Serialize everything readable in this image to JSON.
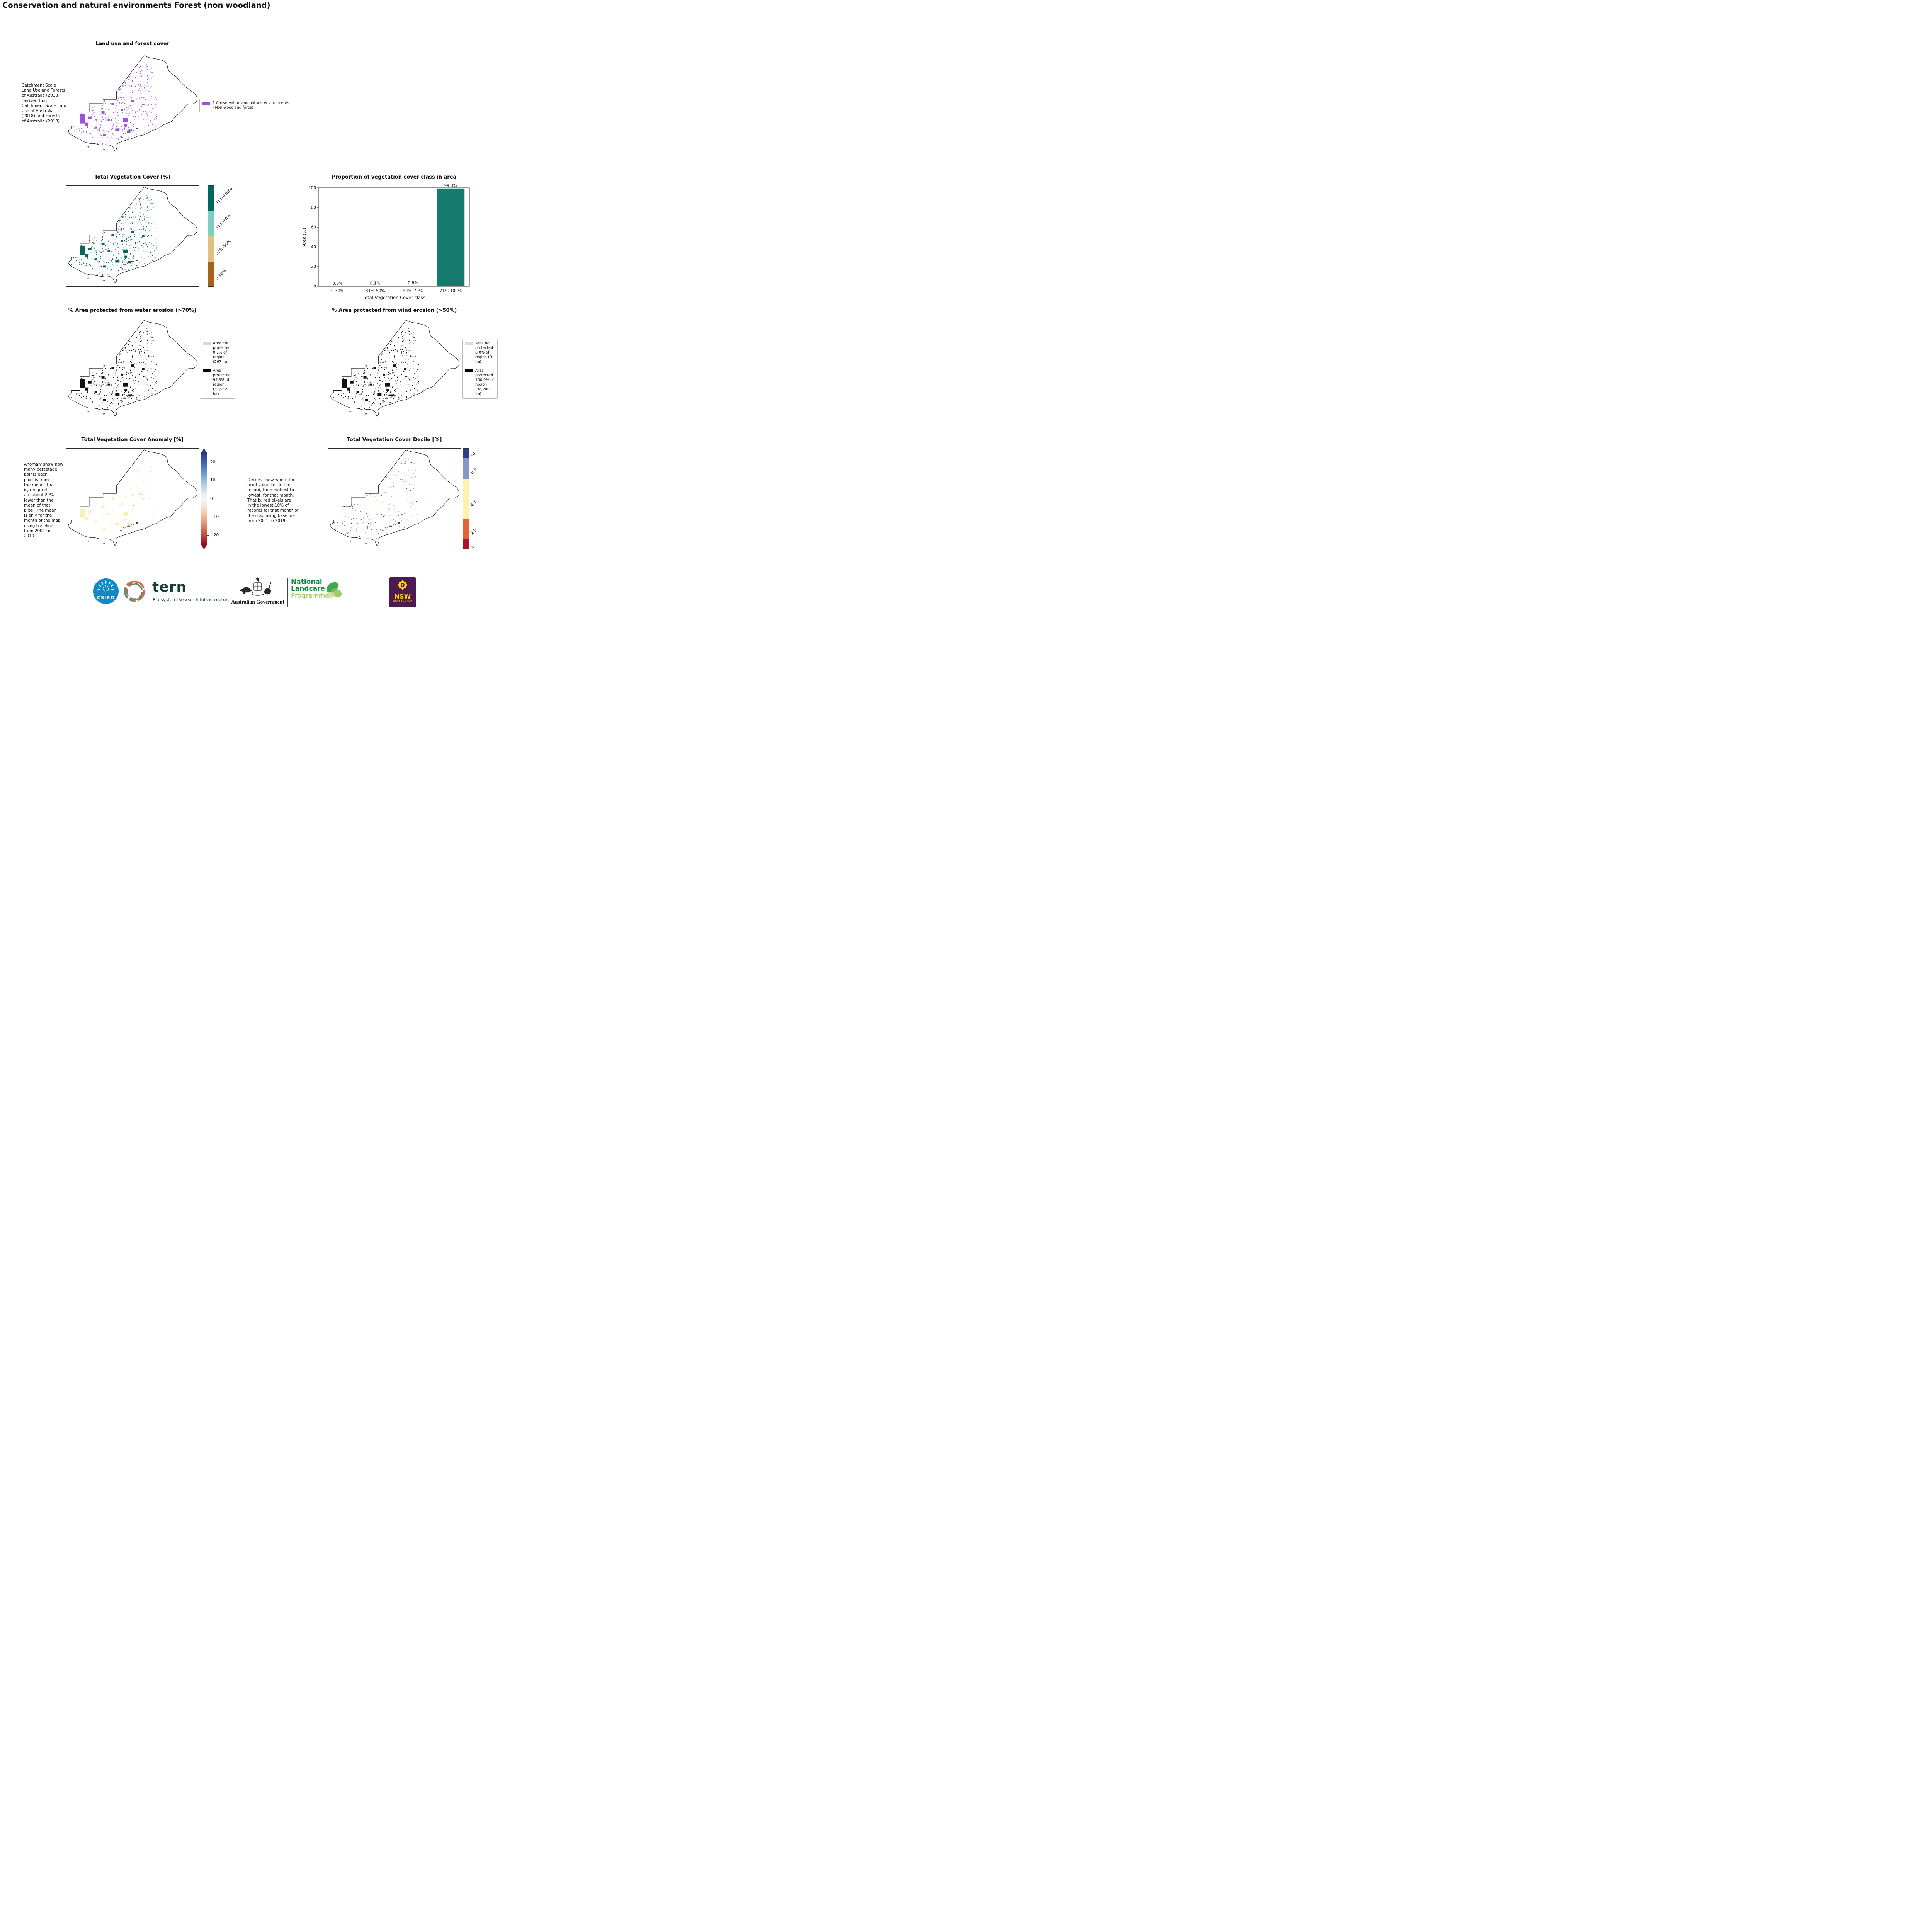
{
  "page": {
    "title": "Conservation and natural environments Forest (non woodland)"
  },
  "panels": {
    "land_use": {
      "title": "Land use and forest cover",
      "note": "Catchment Scale\nLand Use and Forests\nof Australia (2018)\nDerived from\nCatchment Scale Land\nUse of Australia\n(2018) and Forests\nof Australia (2018)",
      "legend_label": "1 Conservation and natural environments - Non-woodland forest",
      "patch_color": "#a050e0"
    },
    "veg_cover": {
      "title": "Total Vegetation Cover [%]",
      "classes": [
        "71%-100%",
        "51%-70%",
        "31%-50%",
        "0-30%"
      ],
      "colors": [
        "#01665e",
        "#80cdc1",
        "#dfc27d",
        "#a6611a"
      ],
      "props": [
        0.25,
        0.25,
        0.25,
        0.25
      ],
      "patch_color": "#0b675c"
    },
    "water": {
      "title": "% Area protected from water erosion (>70%)",
      "entries": [
        {
          "label": "Area not protected 0.7% of region (267 ha)",
          "color": "#d9d9d9"
        },
        {
          "label": "Area protected 99.3% of region (37,932 ha)",
          "color": "#000000"
        }
      ],
      "patch_color": "#111111"
    },
    "wind": {
      "title": "% Area protected from wind erosion (>50%)",
      "entries": [
        {
          "label": "Area not protected 0.0% of region (0 ha)",
          "color": "#d9d9d9"
        },
        {
          "label": "Area protected 100.0% of region (38,200 ha)",
          "color": "#000000"
        }
      ],
      "patch_color": "#111111"
    },
    "anomaly": {
      "title": "Total Vegetation Cover Anomaly [%]",
      "note": "Anomaly show how\nmany percetage\npoints each\npixel is from\nthe mean. That\nis, red pixels\nare about 20%\nlower than the\nmean of that\npixel. The mean\nis only for the\nmonth of the map\nusing baseline\nfrom 2001 to\n2019.",
      "cbar": {
        "tick_labels": [
          "20",
          "10",
          "0",
          "−10",
          "−20"
        ],
        "tick_values": [
          20,
          10,
          0,
          -10,
          -20
        ],
        "range": [
          -25,
          25
        ],
        "top_color": "#2c3d8f",
        "bottom_color": "#8f0e21"
      },
      "dot_colors": [
        [
          "#f9efb9",
          0.72
        ],
        [
          "#f2d490",
          0.14
        ],
        [
          "#e6a45a",
          0.07
        ],
        [
          "#d9e4f0",
          0.07
        ]
      ]
    },
    "decile": {
      "title": "Total Vegetation Cover Decile [%]",
      "note": "Deciles show where the\npixel value lies in the\nrecord, from highest to\nlowest, for that month.\nThat is, red pixels are\nin the lowest 10% of\nrecords for that month of\nthe map using baseline\nfrom 2001 to 2019.",
      "classes": [
        "10",
        "8-9",
        "4-7",
        "2-3",
        "1"
      ],
      "colors": [
        "#2d3e91",
        "#8498c6",
        "#fdf2ab",
        "#e2633a",
        "#a81529"
      ],
      "props": [
        0.1,
        0.2,
        0.4,
        0.2,
        0.1
      ],
      "dot_colors": [
        [
          "#b2182b",
          0.26
        ],
        [
          "#d6604d",
          0.15
        ],
        [
          "#f4a582",
          0.08
        ],
        [
          "#fdf2ab",
          0.18
        ],
        [
          "#92a7d0",
          0.15
        ],
        [
          "#4e63ab",
          0.1
        ],
        [
          "#2d3e91",
          0.08
        ]
      ]
    }
  },
  "chart_data": {
    "type": "bar",
    "title": "Proportion of vegetation cover class in area",
    "categories": [
      "0-30%",
      "31%-50%",
      "51%-70%",
      "71%-100%"
    ],
    "values": [
      0.0,
      0.1,
      0.6,
      99.3
    ],
    "value_labels": [
      "0.0%",
      "0.1%",
      "0.6%",
      "99.3%"
    ],
    "xlabel": "Total Vegetation Cover class",
    "ylabel": "Area (%)",
    "ylim": [
      0,
      100
    ],
    "yticks": [
      0,
      20,
      40,
      60,
      80,
      100
    ],
    "bar_color": "#177a6e",
    "grid": false,
    "legend_position": "none"
  },
  "footer": {
    "csiro_label": "CSIRO",
    "tern_label": "tern",
    "tern_sub": "Ecosystem Research Infrastructure",
    "ausgov_label": "Australian Government",
    "landcare_lines": [
      "National",
      "Landcare",
      "Programme"
    ],
    "nsw_label": "NSW",
    "nsw_sub": "GOVERNMENT"
  }
}
